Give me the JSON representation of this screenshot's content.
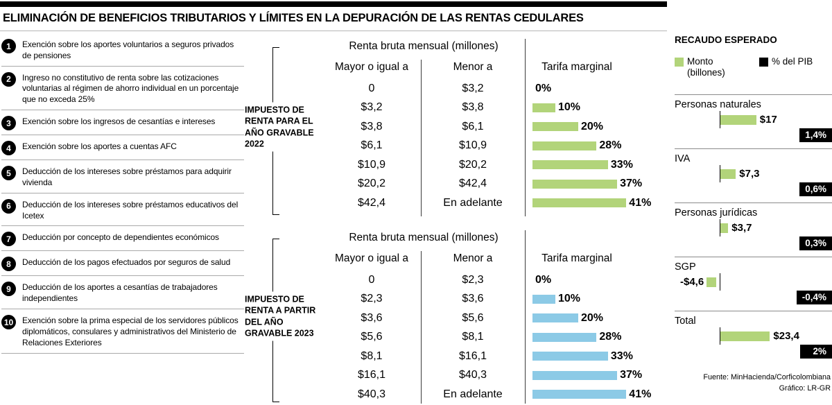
{
  "title": "ELIMINACIÓN DE BENEFICIOS TRIBUTARIOS Y LÍMITES EN LA DEPURACIÓN DE LAS RENTAS CEDULARES",
  "colors": {
    "green": "#b2d47a",
    "blue": "#8ccae6",
    "black": "#000000"
  },
  "benefits": {
    "items": [
      {
        "num": "1",
        "text": "Exención sobre los aportes voluntarios a seguros privados de pensiones"
      },
      {
        "num": "2",
        "text": "Ingreso no constitutivo de renta sobre las cotizaciones voluntarias al régimen de ahorro individual en un porcentaje que no exceda 25%"
      },
      {
        "num": "3",
        "text": "Exención sobre los ingresos de cesantías e intereses"
      },
      {
        "num": "4",
        "text": "Exención sobre los aportes a cuentas AFC"
      },
      {
        "num": "5",
        "text": "Deducción de los intereses sobre préstamos para adquirir vivienda"
      },
      {
        "num": "6",
        "text": "Deducción de los intereses sobre préstamos educativos del Icetex"
      },
      {
        "num": "7",
        "text": "Deducción por concepto de dependientes económicos"
      },
      {
        "num": "8",
        "text": "Deducción de los pagos efectuados por seguros de salud"
      },
      {
        "num": "9",
        "text": "Deducción de los aportes a cesantías de trabajadores independientes"
      },
      {
        "num": "10",
        "text": "Exención sobre la prima especial de los servidores públicos diplomáticos, consulares y administrativos del Ministerio de Relaciones Exteriores"
      }
    ]
  },
  "tables": [
    {
      "label": "IMPUESTO DE RENTA PARA EL AÑO GRAVABLE 2022",
      "group_header": "Renta bruta mensual (millones)",
      "col_from": "Mayor o igual a",
      "col_to": "Menor a",
      "col_rate": "Tarifa marginal",
      "rows": [
        {
          "from": "0",
          "to": "$3,2",
          "pct": 0,
          "label": "0%"
        },
        {
          "from": "$3,2",
          "to": "$3,8",
          "pct": 10,
          "label": "10%"
        },
        {
          "from": "$3,8",
          "to": "$6,1",
          "pct": 20,
          "label": "20%"
        },
        {
          "from": "$6,1",
          "to": "$10,9",
          "pct": 28,
          "label": "28%"
        },
        {
          "from": "$10,9",
          "to": "$20,2",
          "pct": 33,
          "label": "33%"
        },
        {
          "from": "$20,2",
          "to": "$42,4",
          "pct": 37,
          "label": "37%"
        },
        {
          "from": "$42,4",
          "to": "En adelante",
          "pct": 41,
          "label": "41%"
        }
      ]
    },
    {
      "label": "IMPUESTO DE RENTA A PARTIR DEL AÑO GRAVABLE 2023",
      "group_header": "Renta bruta mensual (millones)",
      "col_from": "Mayor o igual a",
      "col_to": "Menor a",
      "col_rate": "Tarifa marginal",
      "rows": [
        {
          "from": "0",
          "to": "$2,3",
          "pct": 0,
          "label": "0%"
        },
        {
          "from": "$2,3",
          "to": "$3,6",
          "pct": 10,
          "label": "10%"
        },
        {
          "from": "$3,6",
          "to": "$5,6",
          "pct": 20,
          "label": "20%"
        },
        {
          "from": "$5,6",
          "to": "$8,1",
          "pct": 28,
          "label": "28%"
        },
        {
          "from": "$8,1",
          "to": "$16,1",
          "pct": 33,
          "label": "33%"
        },
        {
          "from": "$16,1",
          "to": "$40,3",
          "pct": 37,
          "label": "37%"
        },
        {
          "from": "$40,3",
          "to": "En adelante",
          "pct": 41,
          "label": "41%"
        }
      ]
    }
  ],
  "recaudo": {
    "title": "RECAUDO ESPERADO",
    "legend_monto": "Monto (billones)",
    "legend_pib": "% del PIB",
    "categories": [
      {
        "name": "Personas naturales",
        "value": 17,
        "value_label": "$17",
        "pib_label": "1,4%"
      },
      {
        "name": "IVA",
        "value": 7.3,
        "value_label": "$7,3",
        "pib_label": "0,6%"
      },
      {
        "name": "Personas jurídicas",
        "value": 3.7,
        "value_label": "$3,7",
        "pib_label": "0,3%"
      },
      {
        "name": "SGP",
        "value": -4.6,
        "value_label": "-$4,6",
        "pib_label": "-0,4%"
      },
      {
        "name": "Total",
        "value": 23.4,
        "value_label": "$23,4",
        "pib_label": "2%"
      }
    ],
    "source1": "Fuente: MinHacienda/Corficolombiana",
    "source2": "Gráfico: LR-GR"
  },
  "chart_data": [
    {
      "type": "table",
      "title": "Impuesto de renta para el año gravable 2022 — Renta bruta mensual (millones)",
      "columns": [
        "Mayor o igual a",
        "Menor a",
        "Tarifa marginal"
      ],
      "rows": [
        [
          "0",
          "$3,2",
          "0%"
        ],
        [
          "$3,2",
          "$3,8",
          "10%"
        ],
        [
          "$3,8",
          "$6,1",
          "20%"
        ],
        [
          "$6,1",
          "$10,9",
          "28%"
        ],
        [
          "$10,9",
          "$20,2",
          "33%"
        ],
        [
          "$20,2",
          "$42,4",
          "37%"
        ],
        [
          "$42,4",
          "En adelante",
          "41%"
        ]
      ]
    },
    {
      "type": "table",
      "title": "Impuesto de renta a partir del año gravable 2023 — Renta bruta mensual (millones)",
      "columns": [
        "Mayor o igual a",
        "Menor a",
        "Tarifa marginal"
      ],
      "rows": [
        [
          "0",
          "$2,3",
          "0%"
        ],
        [
          "$2,3",
          "$3,6",
          "10%"
        ],
        [
          "$3,6",
          "$5,6",
          "20%"
        ],
        [
          "$5,6",
          "$8,1",
          "28%"
        ],
        [
          "$8,1",
          "$16,1",
          "33%"
        ],
        [
          "$16,1",
          "$40,3",
          "37%"
        ],
        [
          "$40,3",
          "En adelante",
          "41%"
        ]
      ]
    },
    {
      "type": "bar",
      "orientation": "horizontal",
      "title": "Recaudo esperado",
      "categories": [
        "Personas naturales",
        "IVA",
        "Personas jurídicas",
        "SGP",
        "Total"
      ],
      "series": [
        {
          "name": "Monto (billones)",
          "values": [
            17,
            7.3,
            3.7,
            -4.6,
            23.4
          ]
        },
        {
          "name": "% del PIB",
          "values": [
            1.4,
            0.6,
            0.3,
            -0.4,
            2
          ]
        }
      ],
      "legend_position": "top"
    }
  ]
}
